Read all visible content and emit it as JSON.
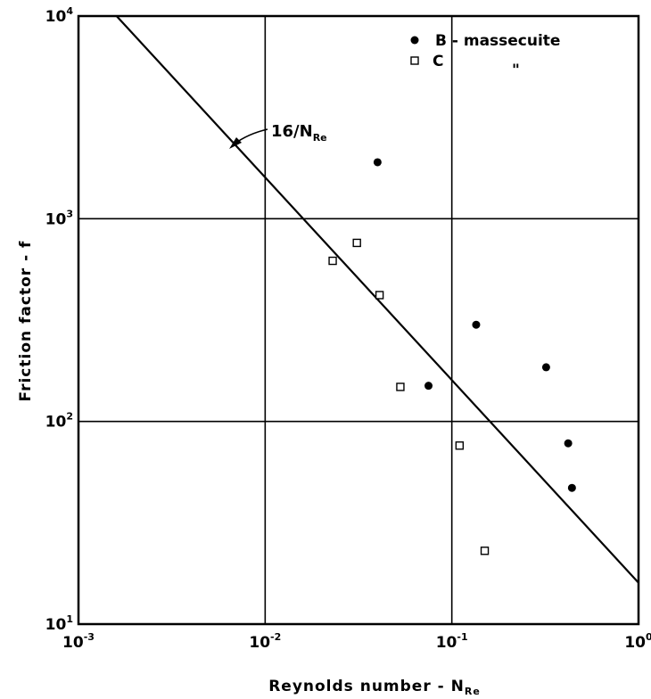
{
  "chart_data": {
    "type": "scatter",
    "xscale": "log",
    "yscale": "log",
    "xlim": [
      0.001,
      1
    ],
    "ylim": [
      10,
      10000
    ],
    "grid": true,
    "xlabel": {
      "main": "Reynolds number - N",
      "sub": "Re"
    },
    "ylabel": "Friction factor - f",
    "x_ticks": [
      {
        "base": "10",
        "exp": "-3",
        "value": 0.001
      },
      {
        "base": "10",
        "exp": "-2",
        "value": 0.01
      },
      {
        "base": "10",
        "exp": "-1",
        "value": 0.1
      },
      {
        "base": "10",
        "exp": "0",
        "value": 1
      }
    ],
    "y_ticks": [
      {
        "base": "10",
        "exp": "1",
        "value": 10
      },
      {
        "base": "10",
        "exp": "2",
        "value": 100
      },
      {
        "base": "10",
        "exp": "3",
        "value": 1000
      },
      {
        "base": "10",
        "exp": "4",
        "value": 10000
      }
    ],
    "legend_position": "top-right",
    "series": [
      {
        "name": "B - massecuite",
        "marker": "filled-circle",
        "points": [
          {
            "x": 0.04,
            "y": 1900
          },
          {
            "x": 0.075,
            "y": 150
          },
          {
            "x": 0.135,
            "y": 300
          },
          {
            "x": 0.32,
            "y": 185
          },
          {
            "x": 0.42,
            "y": 78
          },
          {
            "x": 0.44,
            "y": 47
          }
        ]
      },
      {
        "name": "C",
        "ditto_mark": "\"",
        "marker": "open-square",
        "points": [
          {
            "x": 0.023,
            "y": 620
          },
          {
            "x": 0.031,
            "y": 760
          },
          {
            "x": 0.041,
            "y": 420
          },
          {
            "x": 0.053,
            "y": 148
          },
          {
            "x": 0.11,
            "y": 76
          },
          {
            "x": 0.15,
            "y": 23
          }
        ]
      }
    ],
    "reference_line": {
      "label_main": "16/N",
      "label_sub": "Re",
      "coefficient": 16
    }
  }
}
